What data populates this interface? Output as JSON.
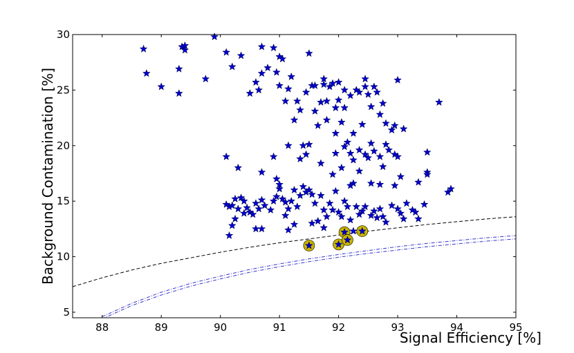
{
  "chart_data": {
    "type": "scatter",
    "title": "",
    "xlabel": "Signal Efficiency [%]",
    "ylabel": "Background Contamination [%]",
    "xlim": [
      87.5,
      95
    ],
    "ylim": [
      4.5,
      30
    ],
    "xticks": [
      88,
      89,
      90,
      91,
      92,
      93,
      94,
      95
    ],
    "yticks": [
      5,
      10,
      15,
      20,
      25,
      30
    ],
    "grid": false,
    "legend": "none",
    "series": [
      {
        "marker": "star",
        "color": "#0000cc",
        "points": [
          [
            88.7,
            28.7
          ],
          [
            88.75,
            26.5
          ],
          [
            89.0,
            25.3
          ],
          [
            89.3,
            24.7
          ],
          [
            89.3,
            26.9
          ],
          [
            89.35,
            28.9
          ],
          [
            89.4,
            29.0
          ],
          [
            89.4,
            28.6
          ],
          [
            89.75,
            26.0
          ],
          [
            89.9,
            29.8
          ],
          [
            90.1,
            28.4
          ],
          [
            90.2,
            27.1
          ],
          [
            90.35,
            28.1
          ],
          [
            90.5,
            24.7
          ],
          [
            90.6,
            25.7
          ],
          [
            90.65,
            25.0
          ],
          [
            90.7,
            26.5
          ],
          [
            90.7,
            28.9
          ],
          [
            90.8,
            27.0
          ],
          [
            90.9,
            28.8
          ],
          [
            90.95,
            26.6
          ],
          [
            91.0,
            28.0
          ],
          [
            91.0,
            25.4
          ],
          [
            91.05,
            27.8
          ],
          [
            91.1,
            24.0
          ],
          [
            91.15,
            25.1
          ],
          [
            91.2,
            26.2
          ],
          [
            91.25,
            22.3
          ],
          [
            91.3,
            24.0
          ],
          [
            91.35,
            23.2
          ],
          [
            91.4,
            20.0
          ],
          [
            91.45,
            24.8
          ],
          [
            91.5,
            28.3
          ],
          [
            91.55,
            25.4
          ],
          [
            91.6,
            23.1
          ],
          [
            91.6,
            25.4
          ],
          [
            91.65,
            21.8
          ],
          [
            91.7,
            23.9
          ],
          [
            91.75,
            26.0
          ],
          [
            91.75,
            25.5
          ],
          [
            91.8,
            24.0
          ],
          [
            91.8,
            22.3
          ],
          [
            91.85,
            25.3
          ],
          [
            91.9,
            25.6
          ],
          [
            91.95,
            21.1
          ],
          [
            91.95,
            23.4
          ],
          [
            92.0,
            25.7
          ],
          [
            92.0,
            24.1
          ],
          [
            92.05,
            22.1
          ],
          [
            92.1,
            25.0
          ],
          [
            92.1,
            23.4
          ],
          [
            92.15,
            20.3
          ],
          [
            92.2,
            24.5
          ],
          [
            92.25,
            21.1
          ],
          [
            92.3,
            25.0
          ],
          [
            92.35,
            24.8
          ],
          [
            92.4,
            21.9
          ],
          [
            92.45,
            25.3
          ],
          [
            92.45,
            26.0
          ],
          [
            92.5,
            24.6
          ],
          [
            92.55,
            23.5
          ],
          [
            92.6,
            25.3
          ],
          [
            92.65,
            24.8
          ],
          [
            92.7,
            22.8
          ],
          [
            92.75,
            23.8
          ],
          [
            92.8,
            22.0
          ],
          [
            92.9,
            21.4
          ],
          [
            92.95,
            21.8
          ],
          [
            93.0,
            25.9
          ],
          [
            93.1,
            21.5
          ],
          [
            93.7,
            23.9
          ],
          [
            90.1,
            19.0
          ],
          [
            90.3,
            18.0
          ],
          [
            90.7,
            17.6
          ],
          [
            90.9,
            19.0
          ],
          [
            90.95,
            17.0
          ],
          [
            91.15,
            20.0
          ],
          [
            91.35,
            18.8
          ],
          [
            91.45,
            19.2
          ],
          [
            91.5,
            20.1
          ],
          [
            91.7,
            18.4
          ],
          [
            91.9,
            17.4
          ],
          [
            91.95,
            19.3
          ],
          [
            92.05,
            18.0
          ],
          [
            92.1,
            19.9
          ],
          [
            92.2,
            19.3
          ],
          [
            92.25,
            18.7
          ],
          [
            92.35,
            19.6
          ],
          [
            92.45,
            19.2
          ],
          [
            92.5,
            18.9
          ],
          [
            92.55,
            20.2
          ],
          [
            92.6,
            19.5
          ],
          [
            92.7,
            19.0
          ],
          [
            92.75,
            18.1
          ],
          [
            92.8,
            20.1
          ],
          [
            92.85,
            19.6
          ],
          [
            92.95,
            19.2
          ],
          [
            93.0,
            19.0
          ],
          [
            93.5,
            19.4
          ],
          [
            93.5,
            17.6
          ],
          [
            93.5,
            17.4
          ],
          [
            93.35,
            16.7
          ],
          [
            93.05,
            17.2
          ],
          [
            92.95,
            16.4
          ],
          [
            92.7,
            16.5
          ],
          [
            92.55,
            16.6
          ],
          [
            92.35,
            17.7
          ],
          [
            92.2,
            16.4
          ],
          [
            92.25,
            16.6
          ],
          [
            93.85,
            15.8
          ],
          [
            93.9,
            16.1
          ],
          [
            90.1,
            14.7
          ],
          [
            90.15,
            14.5
          ],
          [
            90.2,
            14.6
          ],
          [
            90.25,
            15.2
          ],
          [
            90.3,
            14.3
          ],
          [
            90.35,
            15.3
          ],
          [
            90.4,
            15.0
          ],
          [
            90.45,
            14.4
          ],
          [
            90.5,
            14.0
          ],
          [
            90.55,
            13.8
          ],
          [
            90.25,
            13.4
          ],
          [
            90.2,
            12.8
          ],
          [
            90.15,
            11.9
          ],
          [
            90.4,
            13.9
          ],
          [
            90.6,
            14.8
          ],
          [
            90.65,
            14.3
          ],
          [
            90.7,
            15.1
          ],
          [
            90.75,
            14.6
          ],
          [
            90.6,
            12.5
          ],
          [
            90.7,
            12.5
          ],
          [
            90.85,
            14.2
          ],
          [
            90.9,
            15.0
          ],
          [
            90.95,
            15.4
          ],
          [
            91.0,
            16.1
          ],
          [
            91.0,
            16.5
          ],
          [
            91.05,
            15.2
          ],
          [
            91.1,
            14.9
          ],
          [
            91.1,
            13.7
          ],
          [
            91.15,
            14.3
          ],
          [
            91.2,
            15.0
          ],
          [
            91.25,
            16.0
          ],
          [
            91.25,
            12.9
          ],
          [
            91.3,
            14.5
          ],
          [
            91.35,
            15.5
          ],
          [
            91.4,
            16.3
          ],
          [
            91.45,
            15.8
          ],
          [
            91.5,
            16.0
          ],
          [
            91.55,
            15.6
          ],
          [
            91.6,
            14.8
          ],
          [
            91.65,
            13.2
          ],
          [
            91.7,
            15.5
          ],
          [
            91.75,
            14.2
          ],
          [
            91.8,
            13.6
          ],
          [
            91.85,
            14.8
          ],
          [
            91.9,
            14.2
          ],
          [
            91.95,
            15.9
          ],
          [
            92.0,
            14.0
          ],
          [
            92.05,
            13.6
          ],
          [
            92.1,
            15.0
          ],
          [
            92.15,
            14.5
          ],
          [
            92.2,
            13.3
          ],
          [
            92.3,
            14.5
          ],
          [
            92.35,
            13.8
          ],
          [
            92.4,
            14.1
          ],
          [
            92.45,
            14.5
          ],
          [
            92.55,
            13.7
          ],
          [
            92.6,
            14.1
          ],
          [
            92.65,
            13.5
          ],
          [
            92.7,
            14.3
          ],
          [
            92.8,
            13.1
          ],
          [
            92.9,
            14.6
          ],
          [
            93.0,
            14.3
          ],
          [
            93.05,
            13.9
          ],
          [
            93.1,
            13.4
          ],
          [
            93.15,
            14.8
          ],
          [
            93.25,
            14.2
          ],
          [
            93.3,
            14.0
          ],
          [
            93.35,
            13.4
          ],
          [
            93.45,
            14.7
          ],
          [
            92.75,
            13.6
          ],
          [
            91.15,
            12.4
          ],
          [
            91.55,
            13.0
          ],
          [
            91.75,
            12.6
          ],
          [
            92.25,
            12.3
          ]
        ]
      },
      {
        "marker": "star-highlighted",
        "color": "#0000cc",
        "highlight_color": "#c8b400",
        "points": [
          [
            91.5,
            11.0
          ],
          [
            92.0,
            11.1
          ],
          [
            92.1,
            12.2
          ],
          [
            92.15,
            11.5
          ],
          [
            92.4,
            12.3
          ]
        ]
      }
    ],
    "curves": [
      {
        "style": "dashed",
        "color": "#000000",
        "points": [
          [
            87.5,
            7.3
          ],
          [
            88.0,
            8.1
          ],
          [
            88.5,
            8.8
          ],
          [
            89.0,
            9.4
          ],
          [
            89.5,
            9.9
          ],
          [
            90.0,
            10.4
          ],
          [
            90.5,
            10.85
          ],
          [
            91.0,
            11.25
          ],
          [
            91.5,
            11.6
          ],
          [
            92.0,
            11.95
          ],
          [
            92.5,
            12.3
          ],
          [
            93.0,
            12.6
          ],
          [
            93.5,
            12.9
          ],
          [
            94.0,
            13.15
          ],
          [
            94.5,
            13.4
          ],
          [
            95.0,
            13.6
          ]
        ]
      },
      {
        "style": "dash-dot",
        "color": "#3333cc",
        "points": [
          [
            88.0,
            4.6
          ],
          [
            88.5,
            5.8
          ],
          [
            89.0,
            6.8
          ],
          [
            89.5,
            7.6
          ],
          [
            90.0,
            8.25
          ],
          [
            90.5,
            8.85
          ],
          [
            91.0,
            9.35
          ],
          [
            91.5,
            9.8
          ],
          [
            92.0,
            10.2
          ],
          [
            92.5,
            10.55
          ],
          [
            93.0,
            10.9
          ],
          [
            93.5,
            11.2
          ],
          [
            94.0,
            11.45
          ],
          [
            94.5,
            11.7
          ],
          [
            95.0,
            11.9
          ]
        ]
      },
      {
        "style": "dash-dot",
        "color": "#3333cc",
        "points": [
          [
            88.0,
            4.4
          ],
          [
            88.5,
            5.6
          ],
          [
            89.0,
            6.55
          ],
          [
            89.5,
            7.35
          ],
          [
            90.0,
            8.0
          ],
          [
            90.5,
            8.6
          ],
          [
            91.0,
            9.1
          ],
          [
            91.5,
            9.55
          ],
          [
            92.0,
            9.95
          ],
          [
            92.5,
            10.3
          ],
          [
            93.0,
            10.6
          ],
          [
            93.5,
            10.9
          ],
          [
            94.0,
            11.15
          ],
          [
            94.5,
            11.4
          ],
          [
            95.0,
            11.6
          ]
        ]
      }
    ]
  }
}
